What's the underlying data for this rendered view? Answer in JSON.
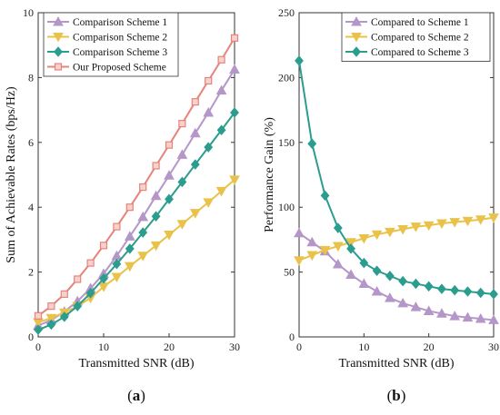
{
  "chart_data": [
    {
      "type": "line",
      "subcaption": "a",
      "xlabel": "Transmitted SNR (dB)",
      "ylabel": "Sum of Achievable Rates (bps/Hz)",
      "xlim": [
        0,
        30
      ],
      "ylim": [
        0,
        10
      ],
      "xticks": [
        0,
        10,
        20,
        30
      ],
      "yticks": [
        0,
        2,
        4,
        6,
        8,
        10
      ],
      "grid": false,
      "legend": "top-left",
      "x": [
        0,
        2,
        4,
        6,
        8,
        10,
        12,
        14,
        16,
        18,
        20,
        22,
        24,
        26,
        28,
        30
      ],
      "series": [
        {
          "name": "Comparison Scheme 1",
          "color": "#b596c9",
          "marker": "triangle-up",
          "values": [
            0.35,
            0.52,
            0.78,
            1.1,
            1.5,
            1.95,
            2.5,
            3.1,
            3.7,
            4.35,
            4.98,
            5.62,
            6.28,
            6.92,
            7.6,
            8.25
          ]
        },
        {
          "name": "Comparison Scheme 2",
          "color": "#e9c24a",
          "marker": "triangle-down",
          "values": [
            0.45,
            0.58,
            0.75,
            0.95,
            1.2,
            1.55,
            1.85,
            2.18,
            2.5,
            2.82,
            3.15,
            3.48,
            3.82,
            4.15,
            4.5,
            4.85
          ]
        },
        {
          "name": "Comparison Scheme 3",
          "color": "#2a9d8f",
          "marker": "diamond",
          "values": [
            0.22,
            0.38,
            0.62,
            0.95,
            1.35,
            1.8,
            2.25,
            2.72,
            3.22,
            3.72,
            4.25,
            4.78,
            5.32,
            5.85,
            6.38,
            6.92
          ]
        },
        {
          "name": "Our Proposed Scheme",
          "color": "#e8837a",
          "marker": "square",
          "values": [
            0.65,
            0.95,
            1.32,
            1.78,
            2.28,
            2.82,
            3.4,
            4.0,
            4.62,
            5.28,
            5.92,
            6.58,
            7.25,
            7.9,
            8.55,
            9.22
          ]
        }
      ]
    },
    {
      "type": "line",
      "subcaption": "b",
      "xlabel": "Transmitted SNR (dB)",
      "ylabel": "Performance Gain (%)",
      "xlim": [
        0,
        30
      ],
      "ylim": [
        0,
        250
      ],
      "xticks": [
        0,
        10,
        20,
        30
      ],
      "yticks": [
        0,
        50,
        100,
        150,
        200,
        250
      ],
      "grid": false,
      "legend": "top-right",
      "x": [
        0,
        2,
        4,
        6,
        8,
        10,
        12,
        14,
        16,
        18,
        20,
        22,
        24,
        26,
        28,
        30
      ],
      "series": [
        {
          "name": "Compared to Scheme 1",
          "color": "#b596c9",
          "marker": "triangle-up",
          "values": [
            80,
            73,
            66,
            56,
            48,
            41,
            35,
            30,
            26,
            23,
            20,
            18,
            16,
            15,
            14,
            13
          ]
        },
        {
          "name": "Compared to Scheme 2",
          "color": "#e9c24a",
          "marker": "triangle-down",
          "values": [
            59,
            63,
            67,
            70,
            73,
            76,
            79,
            81,
            83,
            85,
            86,
            87.5,
            88.5,
            89.5,
            90.5,
            92
          ]
        },
        {
          "name": "Compared to Scheme 3",
          "color": "#2a9d8f",
          "marker": "diamond",
          "values": [
            213,
            149,
            109,
            84,
            68,
            57,
            51,
            47,
            43,
            41,
            39,
            37,
            36,
            35,
            34,
            33
          ]
        }
      ]
    }
  ]
}
